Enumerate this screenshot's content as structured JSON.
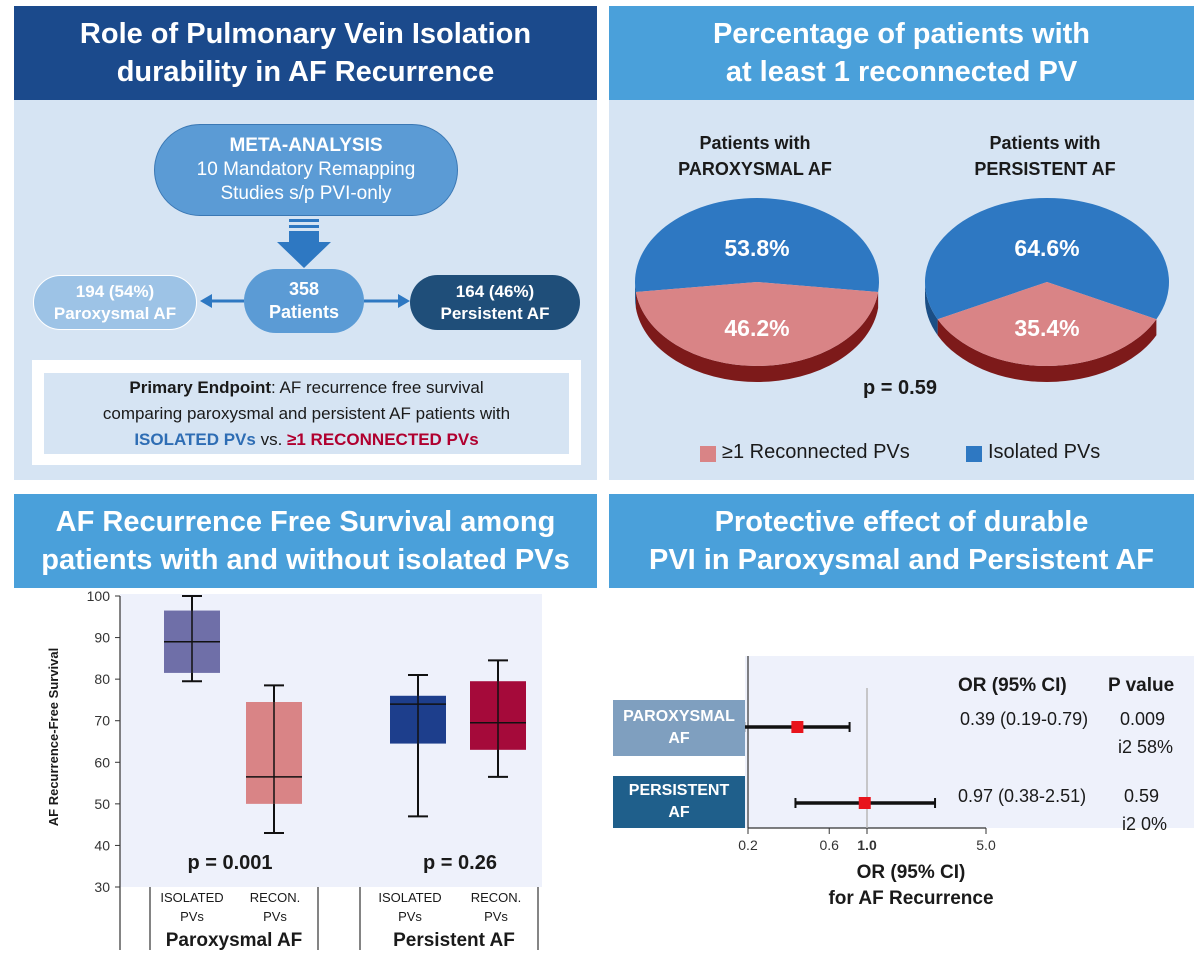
{
  "panel1": {
    "title_line1": "Role of Pulmonary Vein Isolation",
    "title_line2": "durability in AF Recurrence",
    "meta_title": "META-ANALYSIS",
    "meta_line1": "10 Mandatory Remapping",
    "meta_line2": "Studies s/p PVI-only",
    "center_line1": "358",
    "center_line2": "Patients",
    "left_line1": "194 (54%)",
    "left_line2": "Paroxysmal AF",
    "right_line1": "164 (46%)",
    "right_line2": "Persistent AF",
    "endpoint_label": "Primary Endpoint",
    "endpoint_text1": ": AF recurrence free survival",
    "endpoint_text2": "comparing paroxysmal and persistent AF patients with",
    "isolated_text": "ISOLATED PVs",
    "vs_text": " vs. ",
    "reconnected_text": "≥1 RECONNECTED PVs"
  },
  "panel2": {
    "title_line1": "Percentage of patients with",
    "title_line2": "at least 1 reconnected PV",
    "pie1_title1": "Patients with",
    "pie1_title2": "PAROXYSMAL AF",
    "pie2_title1": "Patients with",
    "pie2_title2": "PERSISTENT AF",
    "p_value": "p = 0.59",
    "legend_reconnected": "≥1 Reconnected PVs",
    "legend_isolated": "Isolated PVs"
  },
  "panel3": {
    "title_line1": "AF Recurrence Free Survival among",
    "title_line2": "patients with and without isolated PVs",
    "ylabel": "AF Recurrence-Free Survival",
    "p1": "p = 0.001",
    "p2": "p = 0.26",
    "group1": "Paroxysmal AF",
    "group2": "Persistent AF",
    "iso_line1": "ISOLATED",
    "iso_line2": "PVs",
    "rec_line1": "RECON.",
    "rec_line2": "PVs"
  },
  "panel4": {
    "title_line1": "Protective effect of durable",
    "title_line2": "PVI in Paroxysmal and Persistent AF",
    "col_or": "OR (95% CI)",
    "col_p": "P value",
    "row1_label1": "PAROXYSMAL",
    "row1_label2": "AF",
    "row1_or": "0.39 (0.19-0.79)",
    "row1_p": "0.009",
    "row1_i2": "i2 58%",
    "row2_label1": "PERSISTENT",
    "row2_label2": "AF",
    "row2_or": "0.97 (0.38-2.51)",
    "row2_p": "0.59",
    "row2_i2": "i2 0%",
    "xlabel1": "OR (95% CI)",
    "xlabel2": "for AF Recurrence"
  },
  "colors": {
    "dark_blue": "#1b4a8c",
    "light_blue": "#4aa0da",
    "panel_bg": "#d6e4f3",
    "pie_blue": "#2e78c2",
    "pie_pink": "#d98486",
    "dark_red": "#7d1a1a",
    "crimson": "#b0002f",
    "box_purple": "#6f6fa8",
    "box_pink": "#d98486",
    "box_navy": "#1d3e8c",
    "box_crimson": "#a50a3a"
  },
  "chart_data": [
    {
      "type": "pie",
      "title": "Patients with PAROXYSMAL AF",
      "slices": [
        {
          "label": "Isolated PVs",
          "value": 53.8,
          "display": "53.8%"
        },
        {
          "label": "≥1 Reconnected PVs",
          "value": 46.2,
          "display": "46.2%"
        }
      ]
    },
    {
      "type": "pie",
      "title": "Patients with PERSISTENT AF",
      "slices": [
        {
          "label": "Isolated PVs",
          "value": 64.6,
          "display": "64.6%"
        },
        {
          "label": "≥1 Reconnected PVs",
          "value": 35.4,
          "display": "35.4%"
        }
      ]
    },
    {
      "type": "box",
      "ylabel": "AF Recurrence-Free Survival",
      "ylim": [
        30,
        100
      ],
      "yticks": [
        30,
        40,
        50,
        60,
        70,
        80,
        90,
        100
      ],
      "boxes": [
        {
          "group": "Paroxysmal AF",
          "name": "ISOLATED PVs",
          "min": 79.5,
          "q1": 81.5,
          "median": 89,
          "q3": 96.5,
          "max": 100
        },
        {
          "group": "Paroxysmal AF",
          "name": "RECON. PVs",
          "min": 43,
          "q1": 50,
          "median": 56.5,
          "q3": 74.5,
          "max": 78.5
        },
        {
          "group": "Persistent AF",
          "name": "ISOLATED PVs",
          "min": 47,
          "q1": 64.5,
          "median": 74,
          "q3": 76,
          "max": 81
        },
        {
          "group": "Persistent AF",
          "name": "RECON. PVs",
          "min": 56.5,
          "q1": 63,
          "median": 69.5,
          "q3": 79.5,
          "max": 84.5
        }
      ]
    },
    {
      "type": "forest",
      "xscale": "log",
      "xticks": [
        0.2,
        0.6,
        1.0,
        5.0
      ],
      "xtick_labels": [
        "0.2",
        "0.6",
        "1.0",
        "5.0"
      ],
      "rows": [
        {
          "label": "PAROXYSMAL AF",
          "or": 0.39,
          "lo": 0.19,
          "hi": 0.79
        },
        {
          "label": "PERSISTENT AF",
          "or": 0.97,
          "lo": 0.38,
          "hi": 2.51
        }
      ]
    }
  ]
}
